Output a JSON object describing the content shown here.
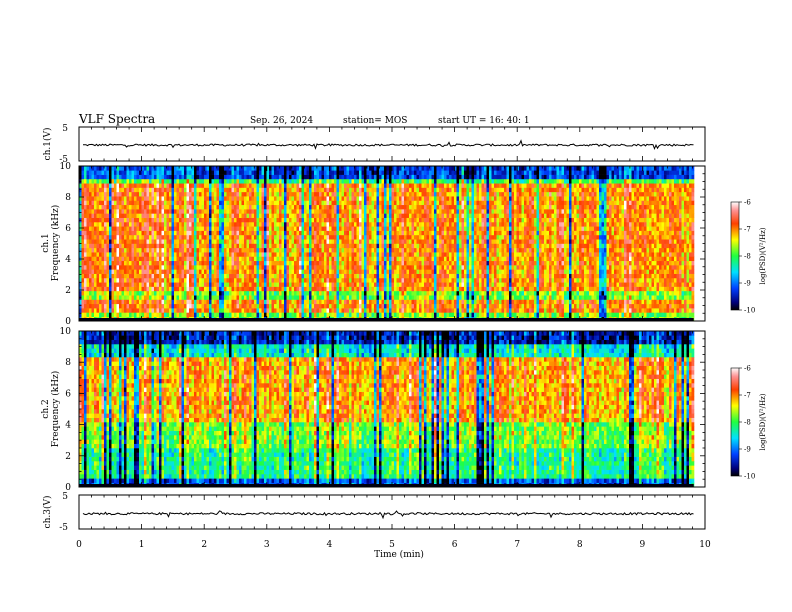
{
  "header": {
    "title": "VLF Spectra",
    "date": "Sep. 26, 2024",
    "station": "station= MOS",
    "start": "start  UT =   16: 40: 1"
  },
  "chart_data": [
    {
      "type": "line",
      "name": "ch1-waveform",
      "ylabel": "ch.1(V)",
      "ylim": [
        -5,
        5
      ],
      "ytick_labels": [
        "5",
        "-5"
      ],
      "xlim": [
        0,
        10
      ],
      "baseline": -0.3
    },
    {
      "type": "heatmap",
      "name": "ch1-spectrogram",
      "ylabel": "ch.1",
      "ylabel2": "Frequency (kHz)",
      "ylim": [
        0,
        10
      ],
      "ytick_labels": [
        "0",
        "2",
        "4",
        "6",
        "8",
        "10"
      ],
      "xlim": [
        0,
        9.82
      ],
      "colorbar": {
        "label": "log(PSD)(V²/Hz)",
        "range": [
          -10,
          -6
        ],
        "tick_labels": [
          "-6",
          "-7",
          "-8",
          "-9",
          "-10"
        ]
      }
    },
    {
      "type": "heatmap",
      "name": "ch2-spectrogram",
      "ylabel": "ch.2",
      "ylabel2": "Frequency (kHz)",
      "ylim": [
        0,
        10
      ],
      "ytick_labels": [
        "0",
        "2",
        "4",
        "6",
        "8",
        "10"
      ],
      "xlim": [
        0,
        9.82
      ],
      "colorbar": {
        "label": "log(PSD)(V²/Hz)",
        "range": [
          -10,
          -6
        ],
        "tick_labels": [
          "-6",
          "-7",
          "-8",
          "-9",
          "-10"
        ]
      }
    },
    {
      "type": "line",
      "name": "ch3-waveform",
      "ylabel": "ch.3(V)",
      "ylim": [
        -5,
        5
      ],
      "ytick_labels": [
        "5",
        "-5"
      ],
      "xlim": [
        0,
        10
      ],
      "baseline": -0.5,
      "xlabel": "Time  (min)",
      "xtick_labels": [
        "0",
        "1",
        "2",
        "3",
        "4",
        "5",
        "6",
        "7",
        "8",
        "9",
        "10"
      ]
    }
  ]
}
